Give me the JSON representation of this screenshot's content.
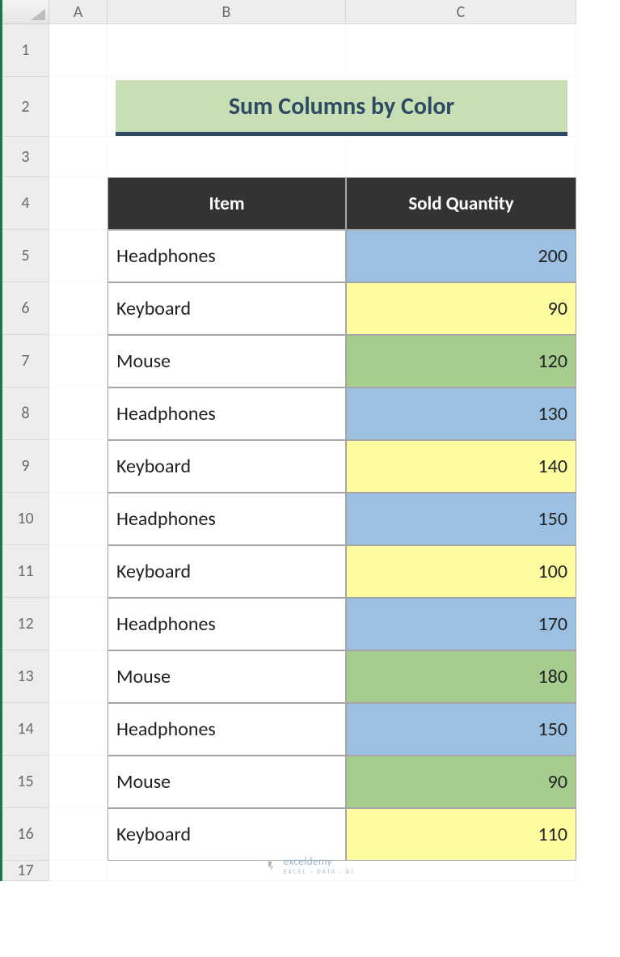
{
  "columns": [
    "A",
    "B",
    "C"
  ],
  "rowCount": 17,
  "title": "Sum Columns by Color",
  "headers": {
    "item": "Item",
    "qty": "Sold Quantity"
  },
  "colors": {
    "blue": "#9cc0e2",
    "yellow": "#fdfb9f",
    "green": "#a6cc8e",
    "header_bg": "#333333",
    "title_bg": "#c8dfb5",
    "title_underline": "#2f4a63"
  },
  "rows": [
    {
      "item": "Headphones",
      "qty": 200,
      "color": "blue"
    },
    {
      "item": "Keyboard",
      "qty": 90,
      "color": "yellow"
    },
    {
      "item": "Mouse",
      "qty": 120,
      "color": "green"
    },
    {
      "item": "Headphones",
      "qty": 130,
      "color": "blue"
    },
    {
      "item": "Keyboard",
      "qty": 140,
      "color": "yellow"
    },
    {
      "item": "Headphones",
      "qty": 150,
      "color": "blue"
    },
    {
      "item": "Keyboard",
      "qty": 100,
      "color": "yellow"
    },
    {
      "item": "Headphones",
      "qty": 170,
      "color": "blue"
    },
    {
      "item": "Mouse",
      "qty": 180,
      "color": "green"
    },
    {
      "item": "Headphones",
      "qty": 150,
      "color": "blue"
    },
    {
      "item": "Mouse",
      "qty": 90,
      "color": "green"
    },
    {
      "item": "Keyboard",
      "qty": 110,
      "color": "yellow"
    }
  ],
  "watermark": {
    "brand": "exceldemy",
    "tag": "EXCEL · DATA · BI"
  }
}
